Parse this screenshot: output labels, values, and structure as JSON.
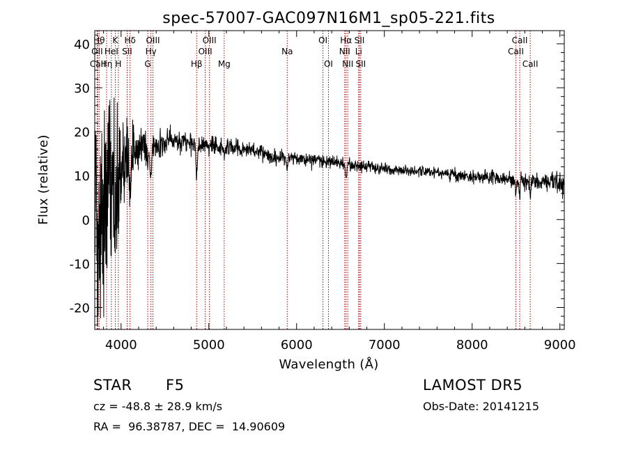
{
  "chart_data": {
    "type": "line",
    "title": "spec-57007-GAC097N16M1_sp05-221.fits",
    "xlabel": "Wavelength (Å)",
    "ylabel": "Flux (relative)",
    "xlim": [
      3700,
      9050
    ],
    "ylim": [
      -25,
      43
    ],
    "xticks": [
      4000,
      5000,
      6000,
      7000,
      8000,
      9000
    ],
    "yticks": [
      -20,
      -10,
      0,
      10,
      20,
      30,
      40
    ],
    "grid": false,
    "line_color": "#000000",
    "marker_color": "#aa0000",
    "lines": [
      {
        "label": "OII",
        "wavelength": 3727,
        "row": 1
      },
      {
        "label": "CaII",
        "wavelength": 3734,
        "row": 2
      },
      {
        "label": "Hθ",
        "wavelength": 3750,
        "row": 0
      },
      {
        "label": "Hη",
        "wavelength": 3835,
        "row": 2
      },
      {
        "label": "HeI",
        "wavelength": 3889,
        "row": 1
      },
      {
        "label": "K",
        "wavelength": 3934,
        "row": 0
      },
      {
        "label": "H",
        "wavelength": 3969,
        "row": 2
      },
      {
        "label": "SII",
        "wavelength": 4069,
        "row": 1
      },
      {
        "label": "Hδ",
        "wavelength": 4102,
        "row": 0
      },
      {
        "label": "G",
        "wavelength": 4304,
        "row": 2
      },
      {
        "label": "Hγ",
        "wavelength": 4340,
        "row": 1
      },
      {
        "label": "OIII",
        "wavelength": 4363,
        "row": 0
      },
      {
        "label": "Hβ",
        "wavelength": 4861,
        "row": 2
      },
      {
        "label": "OIII",
        "wavelength": 4959,
        "row": 1
      },
      {
        "label": "OIII",
        "wavelength": 5007,
        "row": 0
      },
      {
        "label": "Mg",
        "wavelength": 5175,
        "row": 2
      },
      {
        "label": "Na",
        "wavelength": 5893,
        "row": 1
      },
      {
        "label": "OI",
        "wavelength": 6300,
        "row": 0
      },
      {
        "label": "OI",
        "wavelength": 6363,
        "row": 2
      },
      {
        "label": "NII",
        "wavelength": 6548,
        "row": 1
      },
      {
        "label": "Hα",
        "wavelength": 6563,
        "row": 0
      },
      {
        "label": "NII",
        "wavelength": 6583,
        "row": 2
      },
      {
        "label": "Li",
        "wavelength": 6707,
        "row": 1
      },
      {
        "label": "SII",
        "wavelength": 6716,
        "row": 0
      },
      {
        "label": "SII",
        "wavelength": 6731,
        "row": 2
      },
      {
        "label": "CaII",
        "wavelength": 8498,
        "row": 1
      },
      {
        "label": "CaII",
        "wavelength": 8542,
        "row": 0
      },
      {
        "label": "CaII",
        "wavelength": 8662,
        "row": 2
      }
    ],
    "continuum": [
      [
        3700,
        3
      ],
      [
        3800,
        8
      ],
      [
        3900,
        11
      ],
      [
        4000,
        13
      ],
      [
        4100,
        15
      ],
      [
        4200,
        16
      ],
      [
        4300,
        17
      ],
      [
        4400,
        17.5
      ],
      [
        4500,
        18
      ],
      [
        4600,
        18
      ],
      [
        4700,
        18
      ],
      [
        4800,
        17.5
      ],
      [
        4900,
        17
      ],
      [
        5000,
        17
      ],
      [
        5200,
        16.5
      ],
      [
        5400,
        16
      ],
      [
        5600,
        15
      ],
      [
        5800,
        14
      ],
      [
        6000,
        14
      ],
      [
        6200,
        13.5
      ],
      [
        6400,
        13
      ],
      [
        6600,
        12.5
      ],
      [
        6800,
        12
      ],
      [
        7000,
        11.5
      ],
      [
        7200,
        11.2
      ],
      [
        7500,
        10.8
      ],
      [
        7800,
        10.3
      ],
      [
        8000,
        9.8
      ],
      [
        8200,
        9.5
      ],
      [
        8400,
        9.0
      ],
      [
        8600,
        8.7
      ],
      [
        8800,
        8.5
      ],
      [
        9000,
        8.2
      ],
      [
        9050,
        8
      ]
    ],
    "absorption": [
      {
        "w": 3734,
        "depth": 14,
        "width": 10
      },
      {
        "w": 3750,
        "depth": 10,
        "width": 10
      },
      {
        "w": 3771,
        "depth": 10,
        "width": 10
      },
      {
        "w": 3798,
        "depth": 10,
        "width": 10
      },
      {
        "w": 3835,
        "depth": 9,
        "width": 12
      },
      {
        "w": 3889,
        "depth": 9,
        "width": 12
      },
      {
        "w": 3934,
        "depth": 14,
        "width": 10
      },
      {
        "w": 3969,
        "depth": 10,
        "width": 10
      },
      {
        "w": 4102,
        "depth": 8,
        "width": 14
      },
      {
        "w": 4304,
        "depth": 4,
        "width": 10
      },
      {
        "w": 4340,
        "depth": 8,
        "width": 14
      },
      {
        "w": 4861,
        "depth": 6,
        "width": 14
      },
      {
        "w": 5175,
        "depth": 2,
        "width": 10
      },
      {
        "w": 5893,
        "depth": 2.5,
        "width": 8
      },
      {
        "w": 6563,
        "depth": 4,
        "width": 12
      },
      {
        "w": 8498,
        "depth": 3,
        "width": 8
      },
      {
        "w": 8542,
        "depth": 4,
        "width": 8
      },
      {
        "w": 8662,
        "depth": 3.5,
        "width": 8
      }
    ],
    "noise": [
      [
        3700,
        14
      ],
      [
        3800,
        15
      ],
      [
        3900,
        12
      ],
      [
        4000,
        8
      ],
      [
        4100,
        4
      ],
      [
        4300,
        2.5
      ],
      [
        4600,
        1.8
      ],
      [
        5000,
        1.5
      ],
      [
        5600,
        1.2
      ],
      [
        6500,
        1.0
      ],
      [
        7500,
        0.9
      ],
      [
        8500,
        1.3
      ],
      [
        8800,
        1.5
      ],
      [
        9000,
        2.2
      ],
      [
        9050,
        2.5
      ]
    ]
  },
  "info": {
    "object_class": "STAR",
    "subclass": "F5",
    "survey": "LAMOST DR5",
    "cz": "cz = -48.8 ± 28.9 km/s",
    "obs_date": "Obs-Date: 20141215",
    "coords": "RA =  96.38787, DEC =  14.90609"
  }
}
